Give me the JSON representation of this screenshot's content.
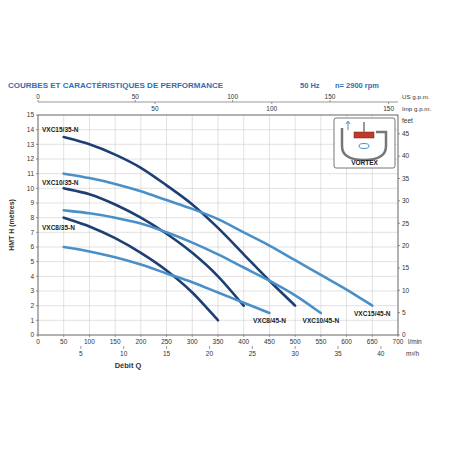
{
  "chart_data": {
    "type": "line",
    "title": "COURBES ET CARACTÉRISTIQUES DE PERFORMANCE",
    "annotations": [
      "50 Hz",
      "n= 2900 rpm",
      "VORTEX"
    ],
    "x_label": "Débit Q",
    "x_unit": "l/min",
    "y_label": "HMT H (mètres)",
    "y2_label": "feet",
    "xlim": [
      0,
      700
    ],
    "xticks": [
      0,
      50,
      100,
      150,
      200,
      250,
      300,
      350,
      400,
      450,
      500,
      550,
      600,
      650,
      700
    ],
    "ylim": [
      0,
      15
    ],
    "yticks": [
      0,
      1,
      2,
      3,
      4,
      5,
      6,
      7,
      8,
      9,
      10,
      11,
      12,
      13,
      14,
      15
    ],
    "y2lim": [
      0,
      49.21
    ],
    "y2ticks": [
      0,
      5,
      10,
      15,
      20,
      25,
      30,
      35,
      40,
      45
    ],
    "top_axes": [
      {
        "label": "US g.p.m.",
        "xlim": [
          0,
          184.93
        ],
        "xticks": [
          0,
          50,
          100,
          150
        ]
      },
      {
        "label": "Imp g.p.m.",
        "xlim": [
          0,
          153.98
        ],
        "xticks": [
          50,
          100,
          150
        ]
      }
    ],
    "bottom_axis2": {
      "label": "m³/h",
      "xlim": [
        0,
        42
      ],
      "xticks": [
        5,
        10,
        15,
        20,
        25,
        30,
        35,
        40
      ]
    },
    "grid": true,
    "series": [
      {
        "name": "VXC15/35-N",
        "color": "#1d3f73",
        "x": [
          50,
          100,
          150,
          200,
          250,
          300,
          350,
          400,
          450,
          500
        ],
        "values": [
          13.5,
          13.0,
          12.3,
          11.4,
          10.2,
          8.9,
          7.3,
          5.5,
          3.7,
          2.0
        ]
      },
      {
        "name": "VXC10/35-N",
        "color": "#1d3f73",
        "x": [
          50,
          100,
          150,
          200,
          250,
          300,
          350,
          400
        ],
        "values": [
          10.0,
          9.6,
          8.9,
          8.0,
          6.9,
          5.6,
          4.0,
          2.0
        ]
      },
      {
        "name": "VXC8/35-N",
        "color": "#1d3f73",
        "x": [
          50,
          100,
          150,
          200,
          250,
          300,
          350
        ],
        "values": [
          8.0,
          7.4,
          6.6,
          5.6,
          4.4,
          2.9,
          1.0
        ]
      },
      {
        "name": "VXC15/45-N",
        "color": "#4a90c8",
        "x": [
          50,
          100,
          150,
          200,
          250,
          300,
          350,
          400,
          450,
          500,
          550,
          600,
          650
        ],
        "values": [
          11.0,
          10.7,
          10.3,
          9.8,
          9.2,
          8.6,
          7.9,
          7.0,
          6.1,
          5.1,
          4.1,
          3.1,
          2.0
        ]
      },
      {
        "name": "VXC10/45-N",
        "color": "#4a90c8",
        "x": [
          50,
          100,
          150,
          200,
          250,
          300,
          350,
          400,
          450,
          500,
          550
        ],
        "values": [
          8.5,
          8.3,
          8.0,
          7.6,
          7.0,
          6.3,
          5.5,
          4.6,
          3.7,
          2.7,
          1.5
        ]
      },
      {
        "name": "VXC8/45-N",
        "color": "#4a90c8",
        "x": [
          50,
          100,
          150,
          200,
          250,
          300,
          350,
          400,
          450
        ],
        "values": [
          6.0,
          5.7,
          5.3,
          4.8,
          4.2,
          3.6,
          2.9,
          2.2,
          1.5
        ]
      }
    ]
  }
}
